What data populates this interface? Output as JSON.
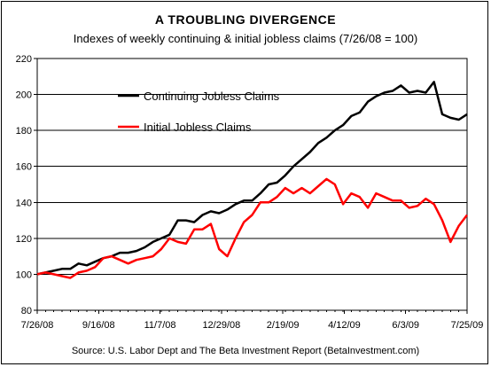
{
  "chart_data": {
    "type": "line",
    "title": "A TROUBLING DIVERGENCE",
    "subtitle": "Indexes of weekly continuing & initial jobless claims (7/26/08 = 100)",
    "source": "Source: U.S. Labor Dept and The Beta Investment Report (BetaInvestment.com)",
    "xlabel": "",
    "ylabel": "",
    "ylim": [
      80,
      220
    ],
    "yticks": [
      "80",
      "100",
      "120",
      "140",
      "160",
      "180",
      "200",
      "220"
    ],
    "xticks": [
      "7/26/08",
      "9/16/08",
      "11/7/08",
      "12/29/08",
      "2/19/09",
      "4/12/09",
      "6/3/09",
      "7/25/09"
    ],
    "grid": "horizontal",
    "legend_position": "upper-left",
    "colors": {
      "continuing": "#000000",
      "initial": "#ff0000",
      "plot_bg": "#ffffff"
    },
    "x": [
      "7/26/08",
      "8/2/08",
      "8/9/08",
      "8/16/08",
      "8/23/08",
      "8/30/08",
      "9/6/08",
      "9/13/08",
      "9/20/08",
      "9/27/08",
      "10/4/08",
      "10/11/08",
      "10/18/08",
      "10/25/08",
      "11/1/08",
      "11/8/08",
      "11/15/08",
      "11/22/08",
      "11/29/08",
      "12/6/08",
      "12/13/08",
      "12/20/08",
      "12/27/08",
      "1/3/09",
      "1/10/09",
      "1/17/09",
      "1/24/09",
      "1/31/09",
      "2/7/09",
      "2/14/09",
      "2/21/09",
      "2/28/09",
      "3/7/09",
      "3/14/09",
      "3/21/09",
      "3/28/09",
      "4/4/09",
      "4/11/09",
      "4/18/09",
      "4/25/09",
      "5/2/09",
      "5/9/09",
      "5/16/09",
      "5/23/09",
      "5/30/09",
      "6/6/09",
      "6/13/09",
      "6/20/09",
      "6/27/09",
      "7/4/09",
      "7/11/09",
      "7/18/09",
      "7/25/09"
    ],
    "series": [
      {
        "name": "Continuing Jobless Claims",
        "values": [
          100,
          101,
          102,
          103,
          103,
          106,
          105,
          107,
          109,
          110,
          112,
          112,
          113,
          115,
          118,
          120,
          122,
          130,
          130,
          129,
          133,
          135,
          134,
          136,
          139,
          141,
          141,
          145,
          150,
          151,
          155,
          160,
          164,
          168,
          173,
          176,
          180,
          183,
          188,
          190,
          196,
          199,
          201,
          202,
          205,
          201,
          202,
          201,
          207,
          189,
          187,
          186,
          189
        ]
      },
      {
        "name": "Initial Jobless Claims",
        "values": [
          100,
          101,
          100,
          99,
          98,
          101,
          102,
          104,
          109,
          110,
          108,
          106,
          108,
          109,
          110,
          114,
          120,
          118,
          117,
          125,
          125,
          128,
          114,
          110,
          120,
          129,
          133,
          140,
          140,
          143,
          148,
          145,
          148,
          145,
          149,
          153,
          150,
          139,
          145,
          143,
          137,
          145,
          143,
          141,
          141,
          137,
          138,
          142,
          139,
          130,
          118,
          127,
          133
        ]
      }
    ]
  }
}
